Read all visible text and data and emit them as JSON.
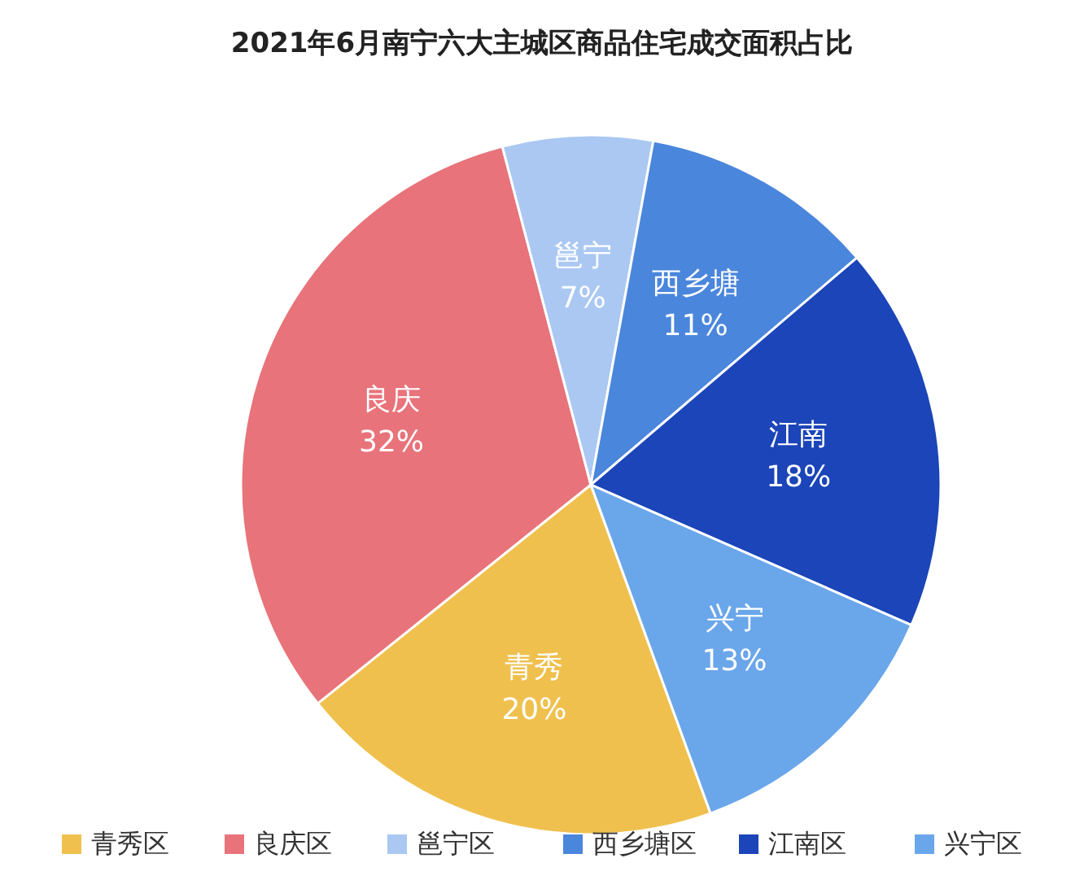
{
  "chart_data": {
    "type": "pie",
    "title": "2021年6月南宁六大主城区商品住宅成交面积占比",
    "categories": [
      "青秀区",
      "良庆区",
      "邕宁区",
      "西乡塘区",
      "江南区",
      "兴宁区"
    ],
    "values": [
      20,
      32,
      7,
      11,
      18,
      13
    ],
    "colors": [
      "#f0c04e",
      "#e8737a",
      "#aac8f2",
      "#4a86dc",
      "#1b45b8",
      "#6aa6ea"
    ],
    "value_labels": [
      "青秀\n20%",
      "良庆\n32%",
      "邕宁\n7%",
      "西乡塘\n11%",
      "江南\n18%",
      "兴宁\n13%"
    ],
    "legend": "bottom"
  }
}
